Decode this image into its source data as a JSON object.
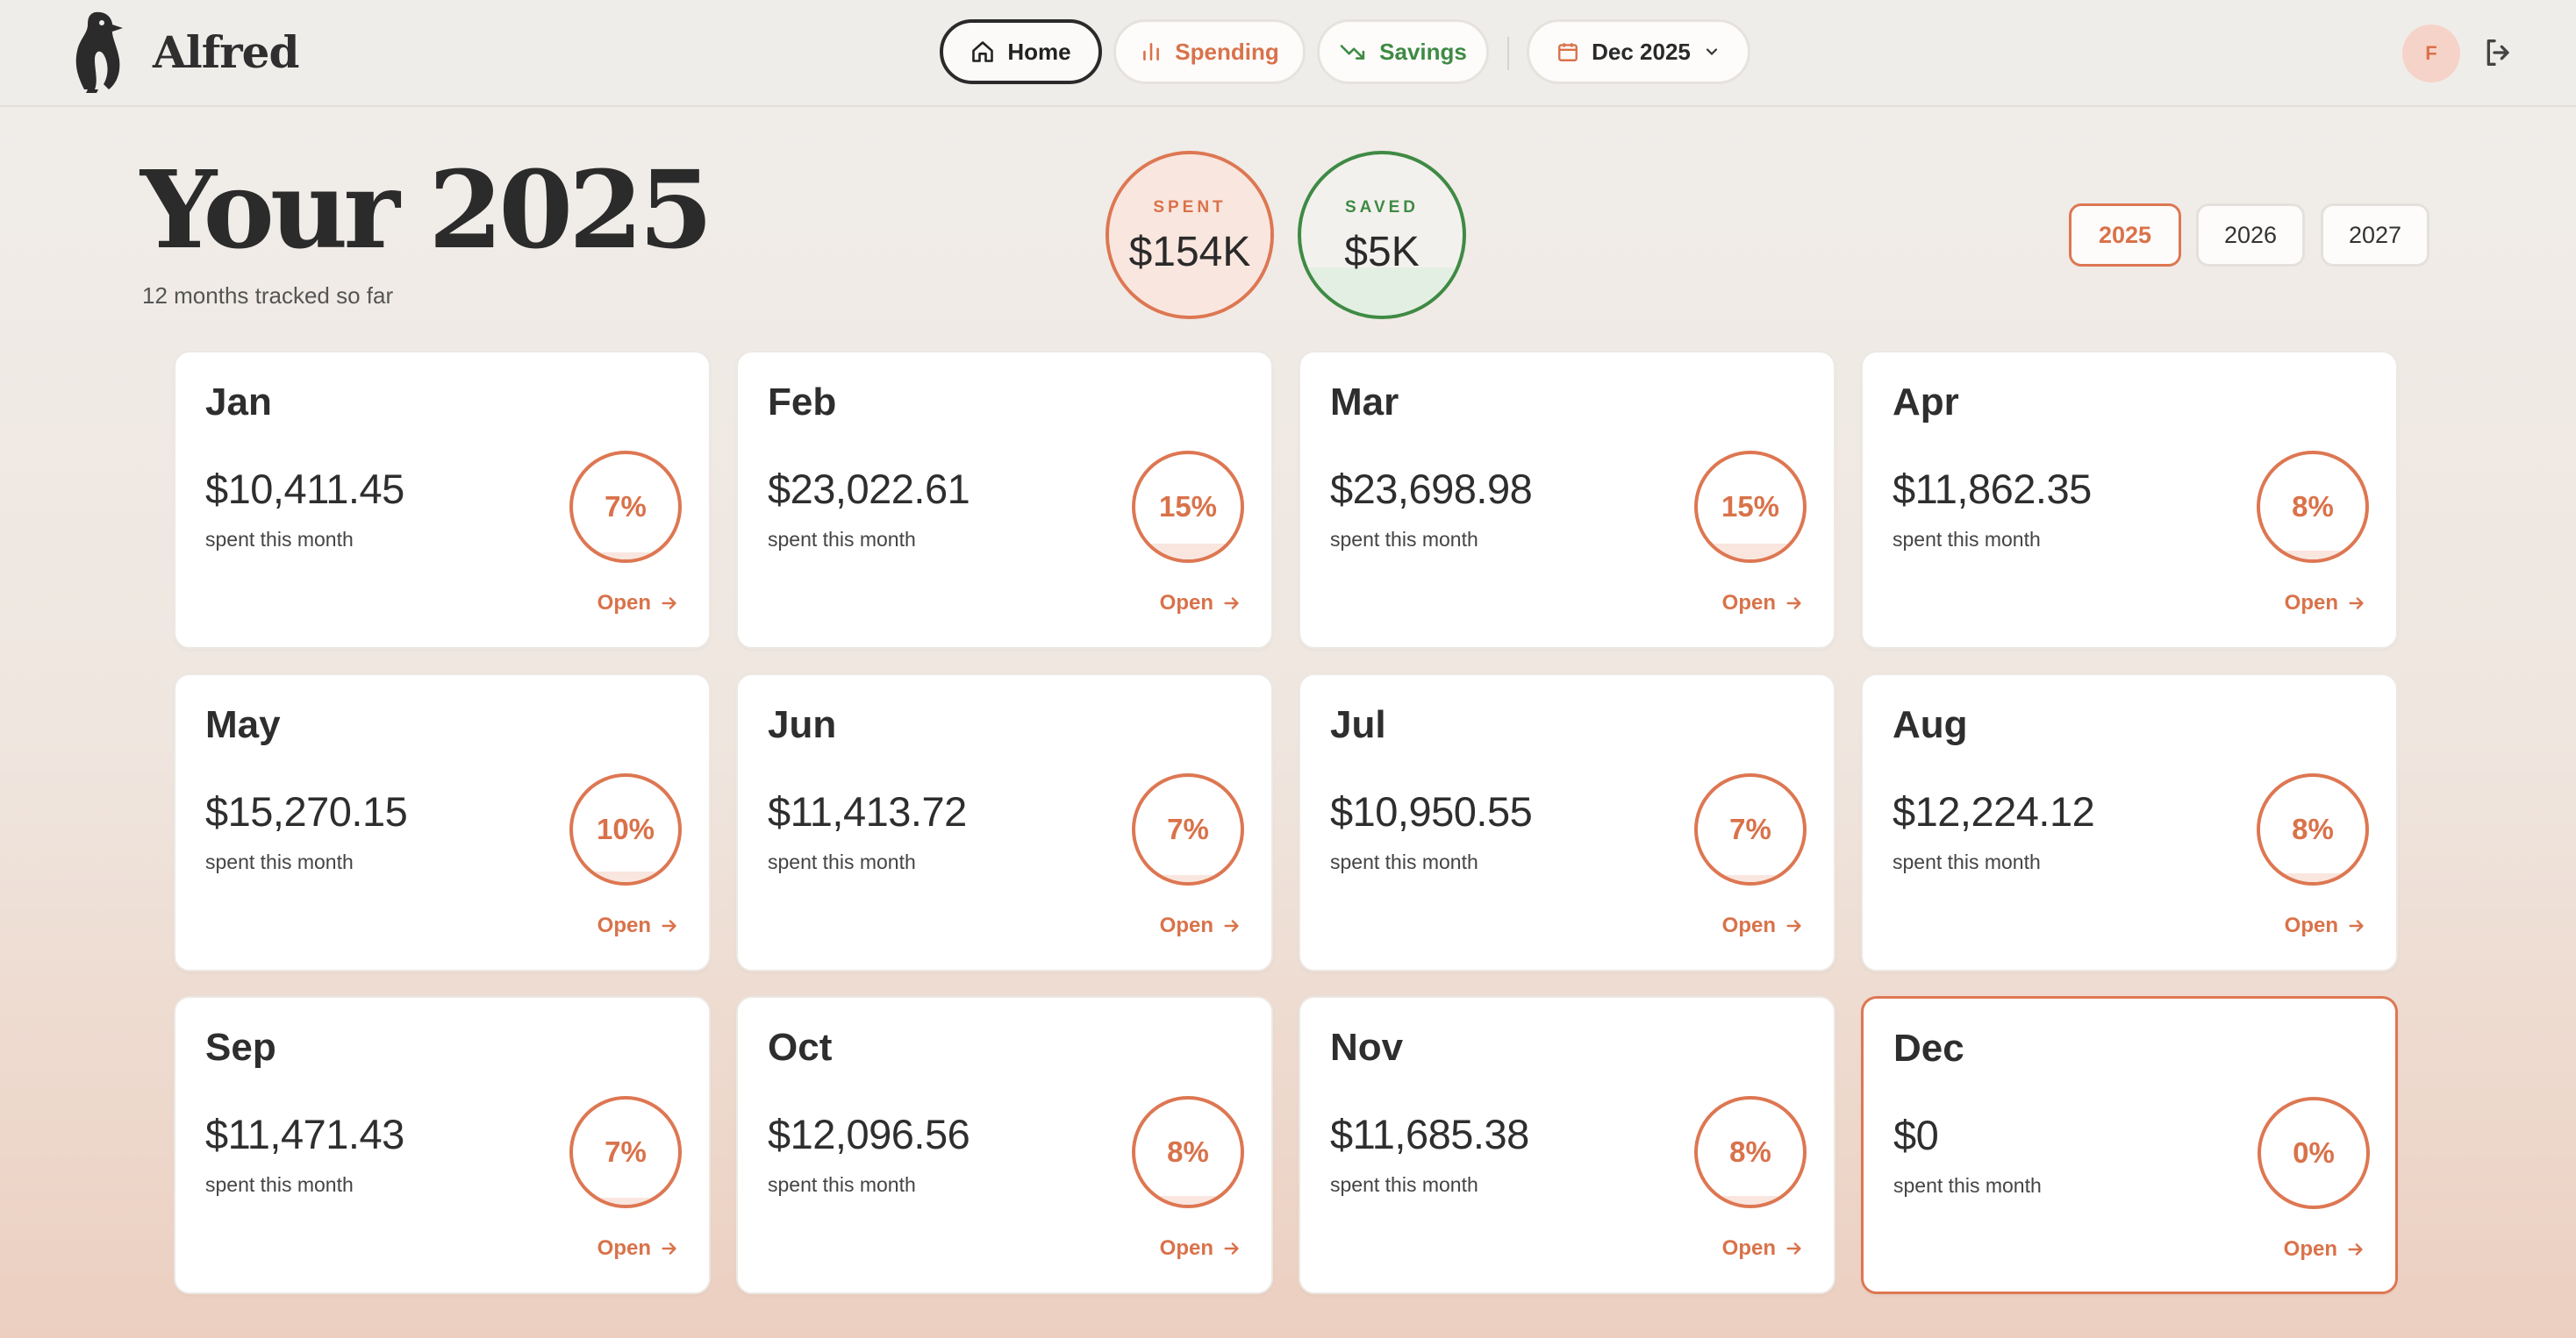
{
  "app": {
    "brand": "Alfred"
  },
  "nav": {
    "home": "Home",
    "spending": "Spending",
    "savings": "Savings",
    "date_selector": "Dec 2025"
  },
  "user": {
    "initial": "F"
  },
  "hero": {
    "title": "Your 2025",
    "subtitle": "12 months tracked so far"
  },
  "stats": {
    "spent": {
      "label": "SPENT",
      "value": "$154K"
    },
    "saved": {
      "label": "SAVED",
      "value": "$5K",
      "fill_fraction": 0.3
    }
  },
  "years": [
    {
      "label": "2025",
      "active": true
    },
    {
      "label": "2026",
      "active": false
    },
    {
      "label": "2027",
      "active": false
    }
  ],
  "months": [
    {
      "name": "Jan",
      "amount": "$10,411.45",
      "caption": "spent this month",
      "percent": "7%",
      "fill_fraction": 0.07,
      "open": "Open"
    },
    {
      "name": "Feb",
      "amount": "$23,022.61",
      "caption": "spent this month",
      "percent": "15%",
      "fill_fraction": 0.15,
      "open": "Open"
    },
    {
      "name": "Mar",
      "amount": "$23,698.98",
      "caption": "spent this month",
      "percent": "15%",
      "fill_fraction": 0.15,
      "open": "Open"
    },
    {
      "name": "Apr",
      "amount": "$11,862.35",
      "caption": "spent this month",
      "percent": "8%",
      "fill_fraction": 0.08,
      "open": "Open"
    },
    {
      "name": "May",
      "amount": "$15,270.15",
      "caption": "spent this month",
      "percent": "10%",
      "fill_fraction": 0.1,
      "open": "Open"
    },
    {
      "name": "Jun",
      "amount": "$11,413.72",
      "caption": "spent this month",
      "percent": "7%",
      "fill_fraction": 0.07,
      "open": "Open"
    },
    {
      "name": "Jul",
      "amount": "$10,950.55",
      "caption": "spent this month",
      "percent": "7%",
      "fill_fraction": 0.07,
      "open": "Open"
    },
    {
      "name": "Aug",
      "amount": "$12,224.12",
      "caption": "spent this month",
      "percent": "8%",
      "fill_fraction": 0.08,
      "open": "Open"
    },
    {
      "name": "Sep",
      "amount": "$11,471.43",
      "caption": "spent this month",
      "percent": "7%",
      "fill_fraction": 0.07,
      "open": "Open"
    },
    {
      "name": "Oct",
      "amount": "$12,096.56",
      "caption": "spent this month",
      "percent": "8%",
      "fill_fraction": 0.08,
      "open": "Open"
    },
    {
      "name": "Nov",
      "amount": "$11,685.38",
      "caption": "spent this month",
      "percent": "8%",
      "fill_fraction": 0.08,
      "open": "Open"
    },
    {
      "name": "Dec",
      "amount": "$0",
      "caption": "spent this month",
      "percent": "0%",
      "fill_fraction": 0,
      "open": "Open",
      "current": true
    }
  ],
  "colors": {
    "accent": "#dd7752",
    "savings": "#3f8a44",
    "text": "#2e2e2e"
  }
}
